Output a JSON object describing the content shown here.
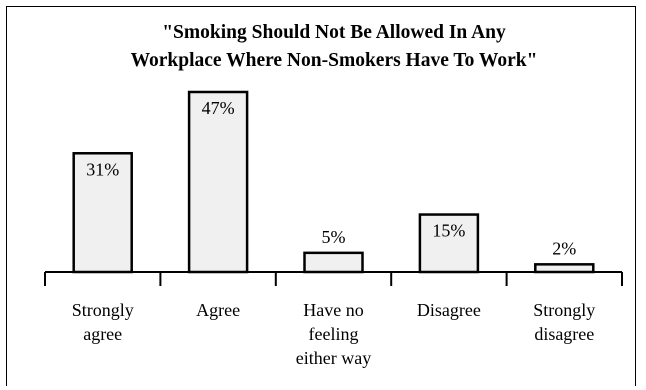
{
  "chart_data": {
    "type": "bar",
    "title_lines": [
      "\"Smoking Should Not Be Allowed In Any",
      "Workplace Where Non-Smokers Have To Work\""
    ],
    "categories": [
      [
        "Strongly",
        "agree"
      ],
      [
        "Agree"
      ],
      [
        "Have no",
        "feeling",
        "either way"
      ],
      [
        "Disagree"
      ],
      [
        "Strongly",
        "disagree"
      ]
    ],
    "values": [
      31,
      47,
      5,
      15,
      2
    ],
    "value_labels": [
      "31%",
      "47%",
      "5%",
      "15%",
      "2%"
    ],
    "ylim": [
      0,
      50
    ],
    "bar_fill": "#f0f0f0",
    "bar_stroke": "#000000"
  }
}
